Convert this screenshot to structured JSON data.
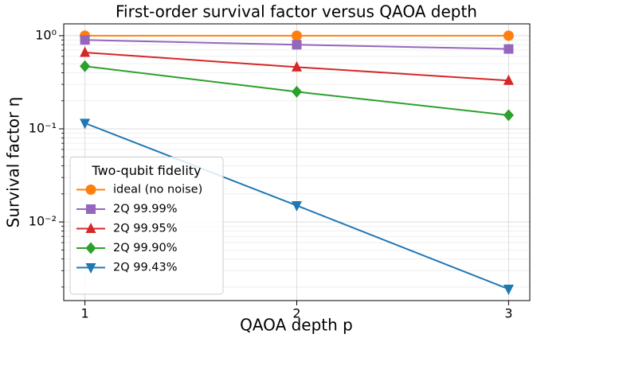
{
  "chart_data": {
    "type": "line",
    "title": "First-order survival factor versus QAOA depth",
    "x_label": "QAOA depth p",
    "y_label": "Survival factor η",
    "x": [
      1,
      2,
      3
    ],
    "series": [
      {
        "name": "ideal (no noise)",
        "color": "#ff7f0e",
        "marker": "circle",
        "values": [
          1,
          1,
          1
        ]
      },
      {
        "name": "2Q 99.99%",
        "color": "#9467bd",
        "marker": "square",
        "values": [
          0.9,
          0.8,
          0.72
        ]
      },
      {
        "name": "2Q 99.95%",
        "color": "#d62728",
        "marker": "triangle-up",
        "values": [
          0.66,
          0.46,
          0.33
        ]
      },
      {
        "name": "2Q 99.90%",
        "color": "#2ca02c",
        "marker": "diamond",
        "values": [
          0.47,
          0.25,
          0.14
        ]
      },
      {
        "name": "2Q 99.43%",
        "color": "#1f77b4",
        "marker": "triangle-down",
        "values": [
          0.115,
          0.015,
          0.0019
        ]
      }
    ],
    "xlim": [
      0.9,
      3.1
    ],
    "xticks": [
      1,
      2,
      3
    ],
    "ylim": [
      0.00143,
      1.34
    ],
    "log_y": true,
    "yticks": [
      {
        "value": 1,
        "label": "10⁰"
      },
      {
        "value": 0.1,
        "label": "10⁻¹"
      },
      {
        "value": 0.01,
        "label": "10⁻²"
      }
    ],
    "yminor_ticks": [
      0.002,
      0.003,
      0.004,
      0.005,
      0.006,
      0.007,
      0.008,
      0.009,
      0.02,
      0.03,
      0.04,
      0.05,
      0.06,
      0.07,
      0.08,
      0.09,
      0.2,
      0.3,
      0.4,
      0.5,
      0.6,
      0.7,
      0.8,
      0.9
    ],
    "grid": true,
    "legend_title": "Two-qubit fidelity",
    "legend_loc": "lower left"
  }
}
